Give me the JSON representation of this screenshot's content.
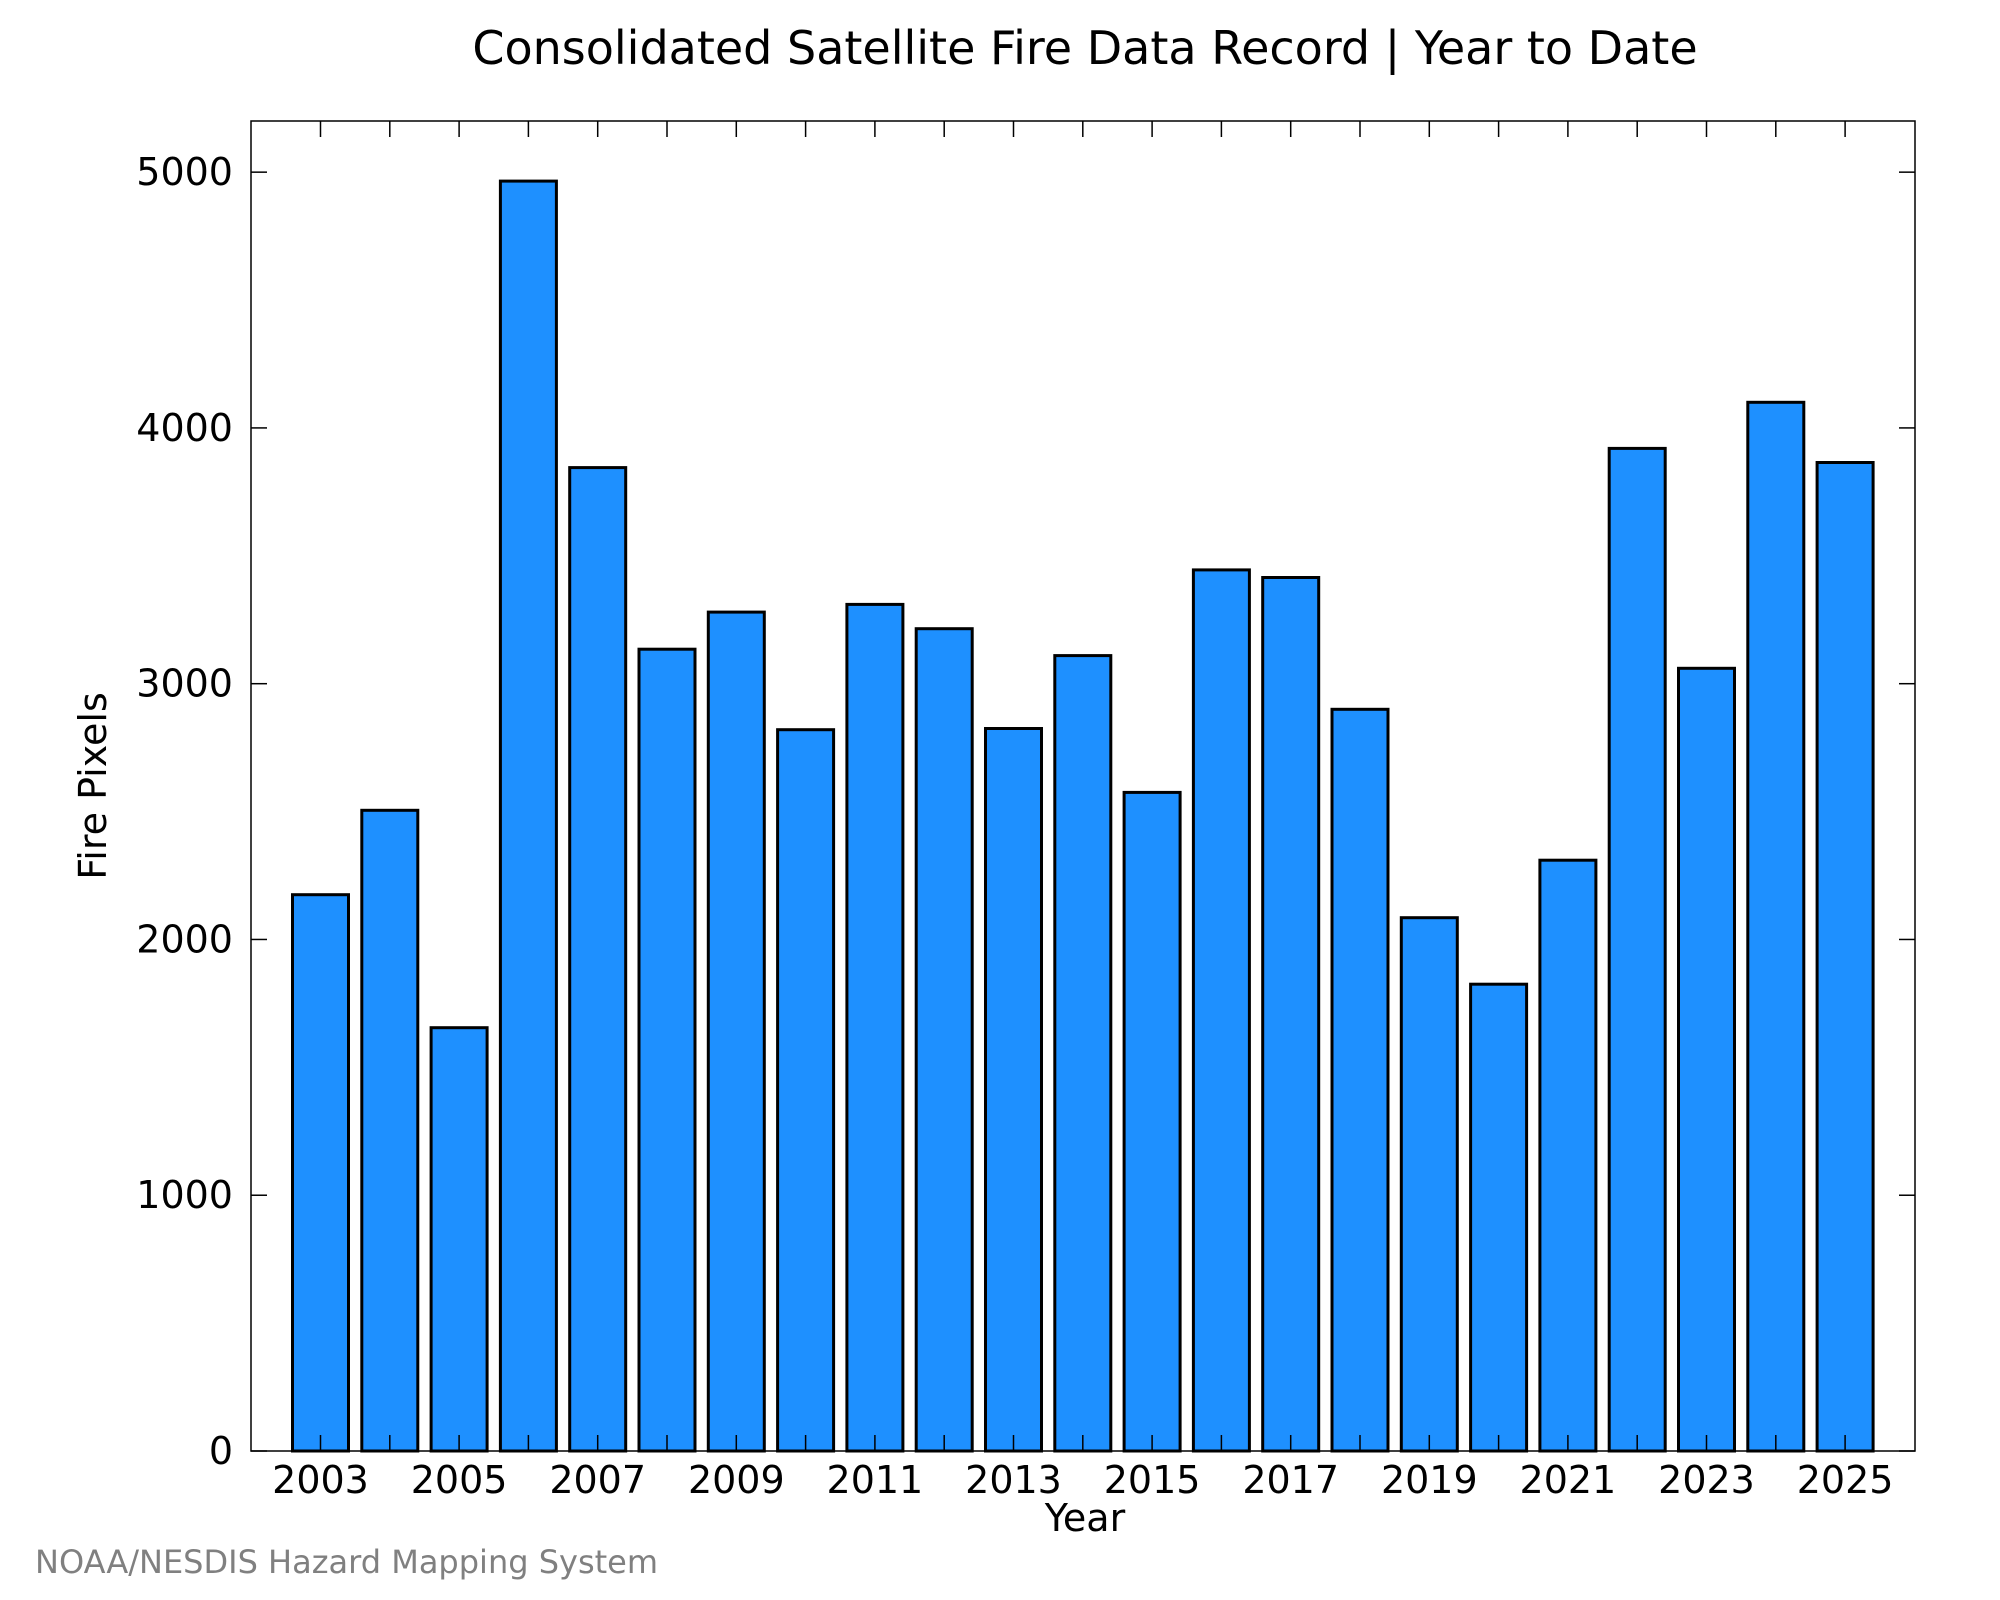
{
  "chart_data": {
    "type": "bar",
    "title": "Consolidated Satellite Fire Data Record | Year to Date",
    "xlabel": "Year",
    "ylabel": "Fire Pixels",
    "categories": [
      "2003",
      "2004",
      "2005",
      "2006",
      "2007",
      "2008",
      "2009",
      "2010",
      "2011",
      "2012",
      "2013",
      "2014",
      "2015",
      "2016",
      "2017",
      "2018",
      "2019",
      "2020",
      "2021",
      "2022",
      "2023",
      "2024",
      "2025"
    ],
    "values": [
      2175,
      2505,
      1655,
      4965,
      3845,
      3135,
      3280,
      2820,
      3310,
      3215,
      2825,
      3110,
      2575,
      3445,
      3415,
      2900,
      2085,
      1825,
      2310,
      3920,
      3060,
      4100,
      3865
    ],
    "x_tick_labels": [
      "2003",
      "2005",
      "2007",
      "2009",
      "2011",
      "2013",
      "2015",
      "2017",
      "2019",
      "2021",
      "2023",
      "2025"
    ],
    "y_tick_labels": [
      "0",
      "1000",
      "2000",
      "3000",
      "4000",
      "5000"
    ],
    "ylim": [
      0,
      5200
    ],
    "bar_color": "#1e90ff",
    "grid": false,
    "credit": "NOAA/NESDIS Hazard Mapping System"
  }
}
